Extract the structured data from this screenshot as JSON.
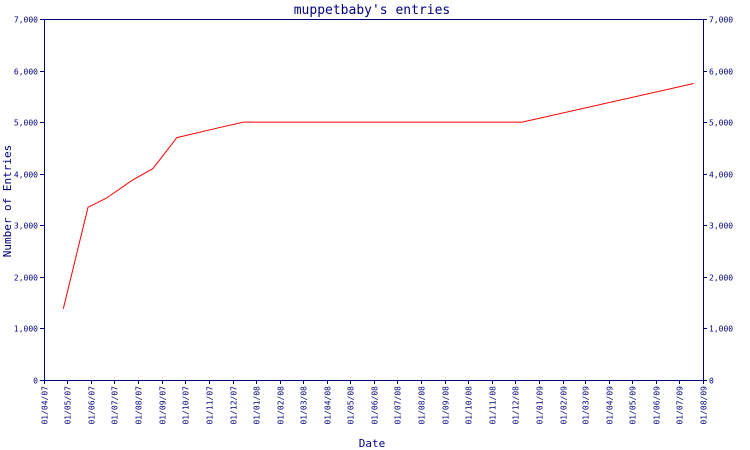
{
  "chart_data": {
    "type": "line",
    "title": "muppetbaby's entries",
    "xlabel": "Date",
    "ylabel": "Number of Entries",
    "ylim": [
      0,
      7000
    ],
    "yticks": [
      0,
      1000,
      2000,
      3000,
      4000,
      5000,
      6000,
      7000
    ],
    "ytick_labels": [
      "0",
      "1,000",
      "2,000",
      "3,000",
      "4,000",
      "5,000",
      "6,000",
      "7,000"
    ],
    "xticks": [
      "01/04/07",
      "01/05/07",
      "01/06/07",
      "01/07/07",
      "01/08/07",
      "01/09/07",
      "01/10/07",
      "01/11/07",
      "01/12/07",
      "01/01/08",
      "01/02/08",
      "01/03/08",
      "01/04/08",
      "01/05/08",
      "01/06/08",
      "01/07/08",
      "01/08/08",
      "01/09/08",
      "01/10/08",
      "01/11/08",
      "01/12/08",
      "01/01/09",
      "01/02/09",
      "01/03/09",
      "01/04/09",
      "01/05/09",
      "01/06/09",
      "01/07/09",
      "01/08/09"
    ],
    "line_color": "#ff0000",
    "axis_color": "#00007f",
    "series": [
      {
        "x": [
          "2007-04-26",
          "2007-05-28",
          "2007-06-20",
          "2007-07-25",
          "2007-08-20",
          "2007-09-20",
          "2007-11-10",
          "2007-12-15",
          "2008-12-10",
          "2009-07-20"
        ],
        "y": [
          1380,
          3350,
          3520,
          3880,
          4100,
          4700,
          4880,
          5000,
          5000,
          5750
        ]
      }
    ]
  }
}
